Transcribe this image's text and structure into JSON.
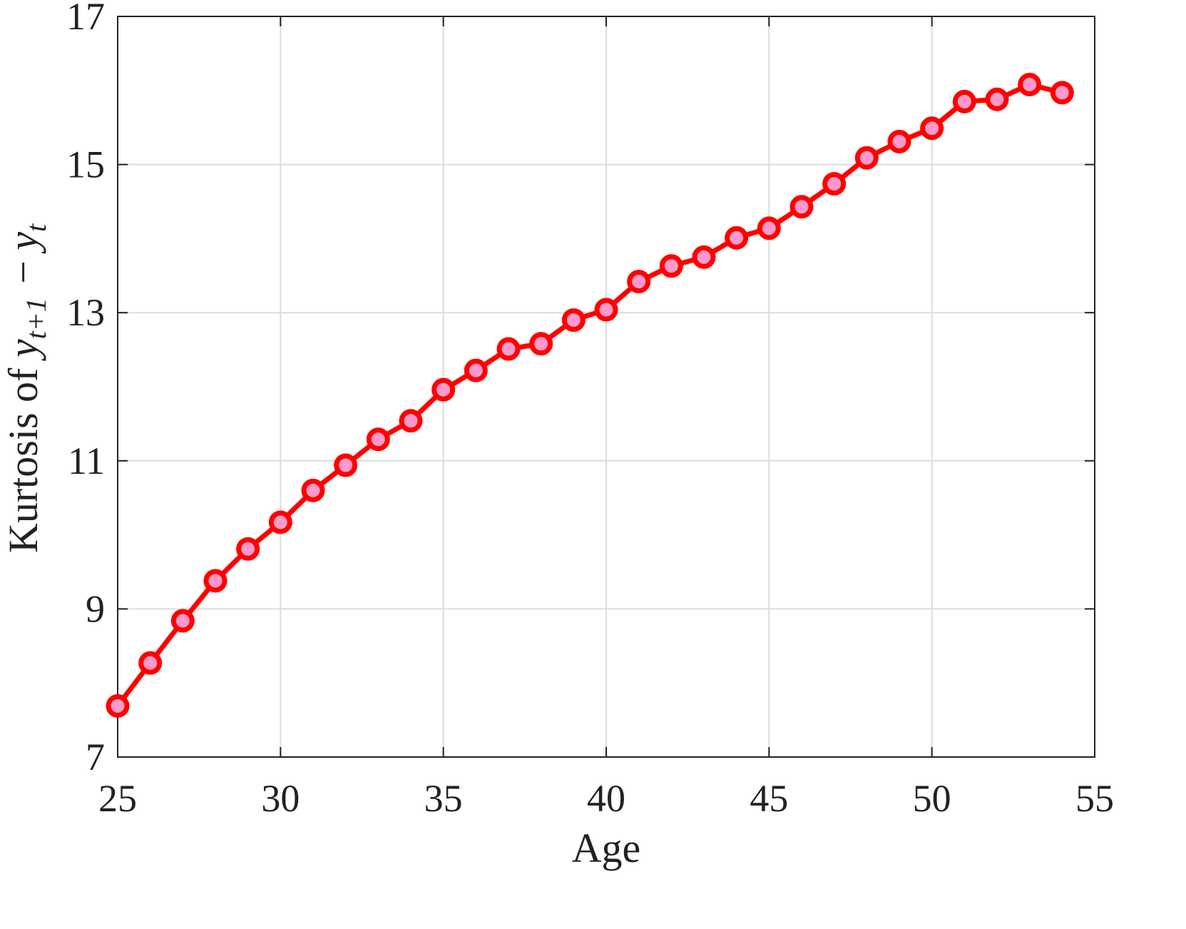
{
  "chart_data": {
    "type": "line",
    "title": "",
    "xlabel": "Age",
    "ylabel": "Kurtosis of y_{t+1} − y_t",
    "xlim": [
      25,
      55
    ],
    "ylim": [
      7,
      17
    ],
    "xticks": [
      25,
      30,
      35,
      40,
      45,
      50,
      55
    ],
    "yticks": [
      7,
      9,
      11,
      13,
      15,
      17
    ],
    "grid": true,
    "x": [
      25,
      26,
      27,
      28,
      29,
      30,
      31,
      32,
      33,
      34,
      35,
      36,
      37,
      38,
      39,
      40,
      41,
      42,
      43,
      44,
      45,
      46,
      47,
      48,
      49,
      50,
      51,
      52,
      53,
      54
    ],
    "series": [
      {
        "values": [
          7.69,
          8.27,
          8.84,
          9.38,
          9.81,
          10.17,
          10.6,
          10.94,
          11.29,
          11.54,
          11.96,
          12.22,
          12.51,
          12.58,
          12.9,
          13.04,
          13.42,
          13.63,
          13.75,
          14.01,
          14.14,
          14.43,
          14.74,
          15.09,
          15.31,
          15.49,
          15.85,
          15.88,
          16.08,
          15.97
        ],
        "line_color": "#ff0000",
        "marker": "circle",
        "marker_fill": "#ff99cc"
      }
    ]
  }
}
